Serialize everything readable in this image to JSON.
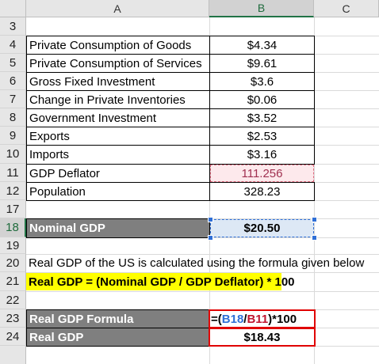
{
  "columns": [
    "A",
    "B",
    "C"
  ],
  "rows": {
    "r3": {
      "num": "3"
    },
    "r4": {
      "num": "4",
      "label": "Private Consumption of Goods",
      "value": "$4.34"
    },
    "r5": {
      "num": "5",
      "label": "Private Consumption of Services",
      "value": "$9.61"
    },
    "r6": {
      "num": "6",
      "label": "Gross Fixed Investment",
      "value": "$3.6"
    },
    "r7": {
      "num": "7",
      "label": "Change in Private Inventories",
      "value": "$0.06"
    },
    "r8": {
      "num": "8",
      "label": "Government Investment",
      "value": "$3.52"
    },
    "r9": {
      "num": "9",
      "label": "Exports",
      "value": "$2.53"
    },
    "r10": {
      "num": "10",
      "label": "Imports",
      "value": "$3.16"
    },
    "r11": {
      "num": "11",
      "label": "GDP Deflator",
      "value": "111.256"
    },
    "r12": {
      "num": "12",
      "label": "Population",
      "value": "328.23"
    },
    "r17": {
      "num": "17"
    },
    "r18": {
      "num": "18",
      "label": "Nominal GDP",
      "value": "$20.50"
    },
    "r19": {
      "num": "19"
    },
    "r20": {
      "num": "20",
      "text": "Real GDP of the US is calculated using the formula given below"
    },
    "r21": {
      "num": "21",
      "text": "Real GDP = (Nominal GDP / GDP Deflator) * 100"
    },
    "r22": {
      "num": "22"
    },
    "r23": {
      "num": "23",
      "label": "Real GDP Formula",
      "formula": {
        "p1": "=(",
        "ref1": "B18",
        "slash": "/",
        "ref2": "B11",
        "p2": ")*100"
      }
    },
    "r24": {
      "num": "24",
      "label": "Real GDP",
      "value": "$18.43"
    }
  },
  "colors": {
    "header_gray": "#7f7f7f",
    "highlight_yellow": "#ffff00",
    "formula_border": "#e00000",
    "ref_blue": "#2f6fd6",
    "ref_red": "#c0152f"
  }
}
